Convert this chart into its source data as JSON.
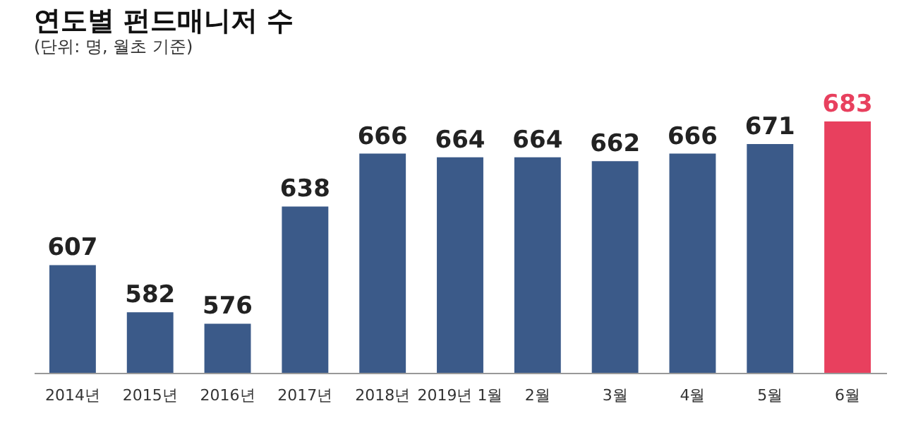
{
  "chart_data": {
    "type": "bar",
    "title": "연도별 펀드매니저 수",
    "subtitle": "(단위: 명, 월초 기준)",
    "categories": [
      "2014년",
      "2015년",
      "2016년",
      "2017년",
      "2018년",
      "2019년 1월",
      "2월",
      "3월",
      "4월",
      "5월",
      "6월"
    ],
    "values": [
      607,
      582,
      576,
      638,
      666,
      664,
      664,
      662,
      666,
      671,
      683
    ],
    "colors": [
      "#3b5a89",
      "#3b5a89",
      "#3b5a89",
      "#3b5a89",
      "#3b5a89",
      "#3b5a89",
      "#3b5a89",
      "#3b5a89",
      "#3b5a89",
      "#3b5a89",
      "#e8405e"
    ],
    "ylim": [
      550,
      683
    ],
    "data_labels": true,
    "tick_labels": "x"
  }
}
